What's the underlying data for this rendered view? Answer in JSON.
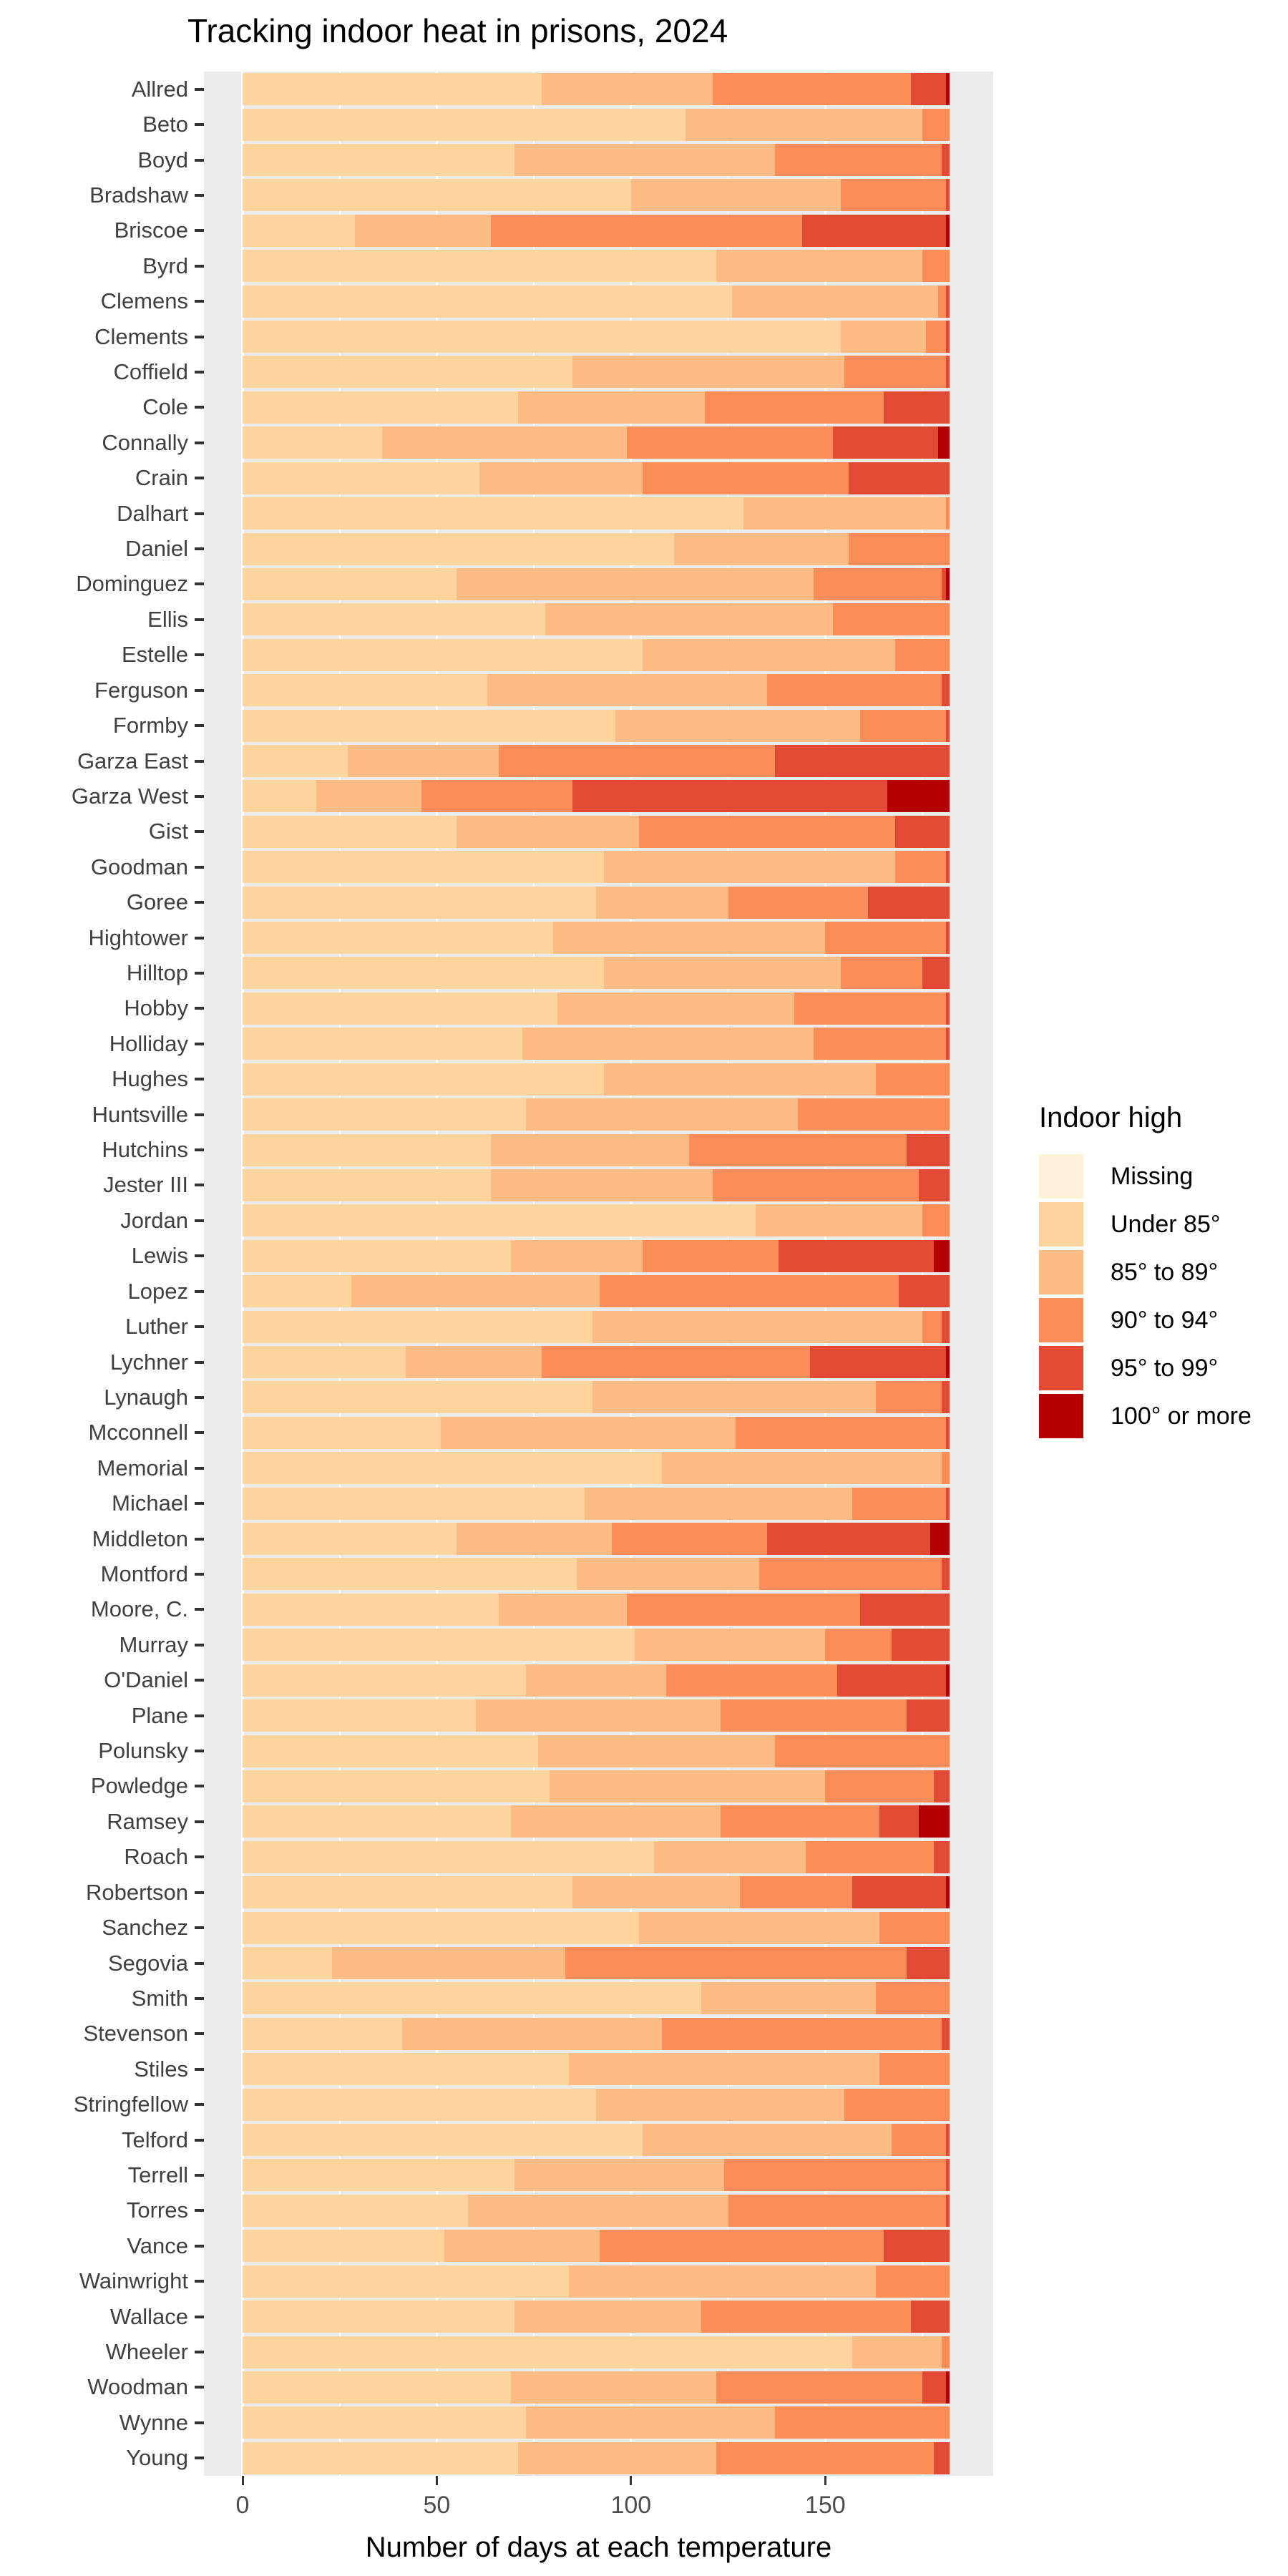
{
  "title": "Tracking indoor heat in prisons, 2024",
  "legend": {
    "title": "Indoor high",
    "items": [
      {
        "label": "Missing",
        "color": "#fef0d9"
      },
      {
        "label": "Under 85°",
        "color": "#fdd49e"
      },
      {
        "label": "85° to 89°",
        "color": "#fdbb84"
      },
      {
        "label": "90° to 94°",
        "color": "#fc8d59"
      },
      {
        "label": "95° to 99°",
        "color": "#e34a33"
      },
      {
        "label": "100° or more",
        "color": "#b30000"
      }
    ]
  },
  "colors": {
    "panel_background": "#ebebeb",
    "gridline": "#ffffff",
    "axis_text": "#4d4d4d",
    "y_label_text": "#404040",
    "tick_mark": "#333333",
    "title_text": "#000000"
  },
  "chart_data": {
    "type": "bar",
    "stacked": true,
    "orientation": "horizontal",
    "title": "Tracking indoor heat in prisons, 2024",
    "xlabel": "Number of days at each temperature",
    "ylabel": "",
    "unit": "days",
    "total_days_per_bar": 182,
    "xlim": [
      0,
      182
    ],
    "x_major_ticks": [
      0,
      50,
      100,
      150
    ],
    "x_minor_ticks": [
      25,
      75,
      125,
      175
    ],
    "grid": true,
    "legend_position": "right",
    "series_order": [
      "Missing",
      "Under 85°",
      "85° to 89°",
      "90° to 94°",
      "95° to 99°",
      "100° or more"
    ],
    "rows": [
      {
        "name": "Allred",
        "values": [
          0,
          77,
          44,
          51,
          9,
          1
        ]
      },
      {
        "name": "Beto",
        "values": [
          0,
          114,
          61,
          7,
          0,
          0
        ]
      },
      {
        "name": "Boyd",
        "values": [
          0,
          70,
          67,
          43,
          2,
          0
        ]
      },
      {
        "name": "Bradshaw",
        "values": [
          0,
          100,
          54,
          27,
          1,
          0
        ]
      },
      {
        "name": "Briscoe",
        "values": [
          0,
          29,
          35,
          80,
          37,
          1
        ]
      },
      {
        "name": "Byrd",
        "values": [
          0,
          122,
          53,
          7,
          0,
          0
        ]
      },
      {
        "name": "Clemens",
        "values": [
          0,
          126,
          53,
          2,
          1,
          0
        ]
      },
      {
        "name": "Clements",
        "values": [
          0,
          154,
          22,
          5,
          1,
          0
        ]
      },
      {
        "name": "Coffield",
        "values": [
          0,
          85,
          70,
          26,
          1,
          0
        ]
      },
      {
        "name": "Cole",
        "values": [
          0,
          71,
          48,
          46,
          17,
          0
        ]
      },
      {
        "name": "Connally",
        "values": [
          0,
          36,
          63,
          53,
          27,
          3
        ]
      },
      {
        "name": "Crain",
        "values": [
          0,
          61,
          42,
          53,
          26,
          0
        ]
      },
      {
        "name": "Dalhart",
        "values": [
          0,
          129,
          52,
          1,
          0,
          0
        ]
      },
      {
        "name": "Daniel",
        "values": [
          0,
          111,
          45,
          26,
          0,
          0
        ]
      },
      {
        "name": "Dominguez",
        "values": [
          0,
          55,
          92,
          33,
          1,
          1
        ]
      },
      {
        "name": "Ellis",
        "values": [
          0,
          78,
          74,
          30,
          0,
          0
        ]
      },
      {
        "name": "Estelle",
        "values": [
          0,
          103,
          65,
          14,
          0,
          0
        ]
      },
      {
        "name": "Ferguson",
        "values": [
          0,
          63,
          72,
          45,
          2,
          0
        ]
      },
      {
        "name": "Formby",
        "values": [
          0,
          96,
          63,
          22,
          1,
          0
        ]
      },
      {
        "name": "Garza East",
        "values": [
          0,
          27,
          39,
          71,
          45,
          0
        ]
      },
      {
        "name": "Garza West",
        "values": [
          0,
          19,
          27,
          39,
          81,
          16
        ]
      },
      {
        "name": "Gist",
        "values": [
          0,
          55,
          47,
          66,
          14,
          0
        ]
      },
      {
        "name": "Goodman",
        "values": [
          0,
          93,
          75,
          13,
          1,
          0
        ]
      },
      {
        "name": "Goree",
        "values": [
          0,
          91,
          34,
          36,
          21,
          0
        ]
      },
      {
        "name": "Hightower",
        "values": [
          0,
          80,
          70,
          31,
          1,
          0
        ]
      },
      {
        "name": "Hilltop",
        "values": [
          0,
          93,
          61,
          21,
          7,
          0
        ]
      },
      {
        "name": "Hobby",
        "values": [
          0,
          81,
          61,
          39,
          1,
          0
        ]
      },
      {
        "name": "Holliday",
        "values": [
          0,
          72,
          75,
          34,
          1,
          0
        ]
      },
      {
        "name": "Hughes",
        "values": [
          0,
          93,
          70,
          19,
          0,
          0
        ]
      },
      {
        "name": "Huntsville",
        "values": [
          0,
          73,
          70,
          39,
          0,
          0
        ]
      },
      {
        "name": "Hutchins",
        "values": [
          0,
          64,
          51,
          56,
          11,
          0
        ]
      },
      {
        "name": "Jester III",
        "values": [
          0,
          64,
          57,
          53,
          8,
          0
        ]
      },
      {
        "name": "Jordan",
        "values": [
          0,
          132,
          43,
          7,
          0,
          0
        ]
      },
      {
        "name": "Lewis",
        "values": [
          0,
          69,
          34,
          35,
          40,
          4
        ]
      },
      {
        "name": "Lopez",
        "values": [
          0,
          28,
          64,
          77,
          13,
          0
        ]
      },
      {
        "name": "Luther",
        "values": [
          0,
          90,
          85,
          5,
          2,
          0
        ]
      },
      {
        "name": "Lychner",
        "values": [
          0,
          42,
          35,
          69,
          35,
          1
        ]
      },
      {
        "name": "Lynaugh",
        "values": [
          0,
          90,
          73,
          17,
          2,
          0
        ]
      },
      {
        "name": "Mcconnell",
        "values": [
          0,
          51,
          76,
          54,
          1,
          0
        ]
      },
      {
        "name": "Memorial",
        "values": [
          0,
          108,
          72,
          2,
          0,
          0
        ]
      },
      {
        "name": "Michael",
        "values": [
          0,
          88,
          69,
          24,
          1,
          0
        ]
      },
      {
        "name": "Middleton",
        "values": [
          0,
          55,
          40,
          40,
          42,
          5
        ]
      },
      {
        "name": "Montford",
        "values": [
          0,
          86,
          47,
          47,
          2,
          0
        ]
      },
      {
        "name": "Moore, C.",
        "values": [
          0,
          66,
          33,
          60,
          23,
          0
        ]
      },
      {
        "name": "Murray",
        "values": [
          0,
          101,
          49,
          17,
          15,
          0
        ]
      },
      {
        "name": "O'Daniel",
        "values": [
          0,
          73,
          36,
          44,
          28,
          1
        ]
      },
      {
        "name": "Plane",
        "values": [
          0,
          60,
          63,
          48,
          11,
          0
        ]
      },
      {
        "name": "Polunsky",
        "values": [
          0,
          76,
          61,
          45,
          0,
          0
        ]
      },
      {
        "name": "Powledge",
        "values": [
          0,
          79,
          71,
          28,
          4,
          0
        ]
      },
      {
        "name": "Ramsey",
        "values": [
          0,
          69,
          54,
          41,
          10,
          8
        ]
      },
      {
        "name": "Roach",
        "values": [
          0,
          106,
          39,
          33,
          4,
          0
        ]
      },
      {
        "name": "Robertson",
        "values": [
          0,
          85,
          43,
          29,
          24,
          1
        ]
      },
      {
        "name": "Sanchez",
        "values": [
          0,
          102,
          62,
          18,
          0,
          0
        ]
      },
      {
        "name": "Segovia",
        "values": [
          0,
          23,
          60,
          88,
          11,
          0
        ]
      },
      {
        "name": "Smith",
        "values": [
          0,
          118,
          45,
          19,
          0,
          0
        ]
      },
      {
        "name": "Stevenson",
        "values": [
          0,
          41,
          67,
          72,
          2,
          0
        ]
      },
      {
        "name": "Stiles",
        "values": [
          0,
          84,
          80,
          18,
          0,
          0
        ]
      },
      {
        "name": "Stringfellow",
        "values": [
          0,
          91,
          64,
          27,
          0,
          0
        ]
      },
      {
        "name": "Telford",
        "values": [
          0,
          103,
          64,
          14,
          1,
          0
        ]
      },
      {
        "name": "Terrell",
        "values": [
          0,
          70,
          54,
          57,
          1,
          0
        ]
      },
      {
        "name": "Torres",
        "values": [
          0,
          58,
          67,
          56,
          1,
          0
        ]
      },
      {
        "name": "Vance",
        "values": [
          0,
          52,
          40,
          73,
          17,
          0
        ]
      },
      {
        "name": "Wainwright",
        "values": [
          0,
          84,
          79,
          19,
          0,
          0
        ]
      },
      {
        "name": "Wallace",
        "values": [
          0,
          70,
          48,
          54,
          10,
          0
        ]
      },
      {
        "name": "Wheeler",
        "values": [
          0,
          157,
          23,
          2,
          0,
          0
        ]
      },
      {
        "name": "Woodman",
        "values": [
          0,
          69,
          53,
          53,
          6,
          1
        ]
      },
      {
        "name": "Wynne",
        "values": [
          0,
          73,
          64,
          45,
          0,
          0
        ]
      },
      {
        "name": "Young",
        "values": [
          0,
          71,
          51,
          56,
          4,
          0
        ]
      }
    ]
  }
}
